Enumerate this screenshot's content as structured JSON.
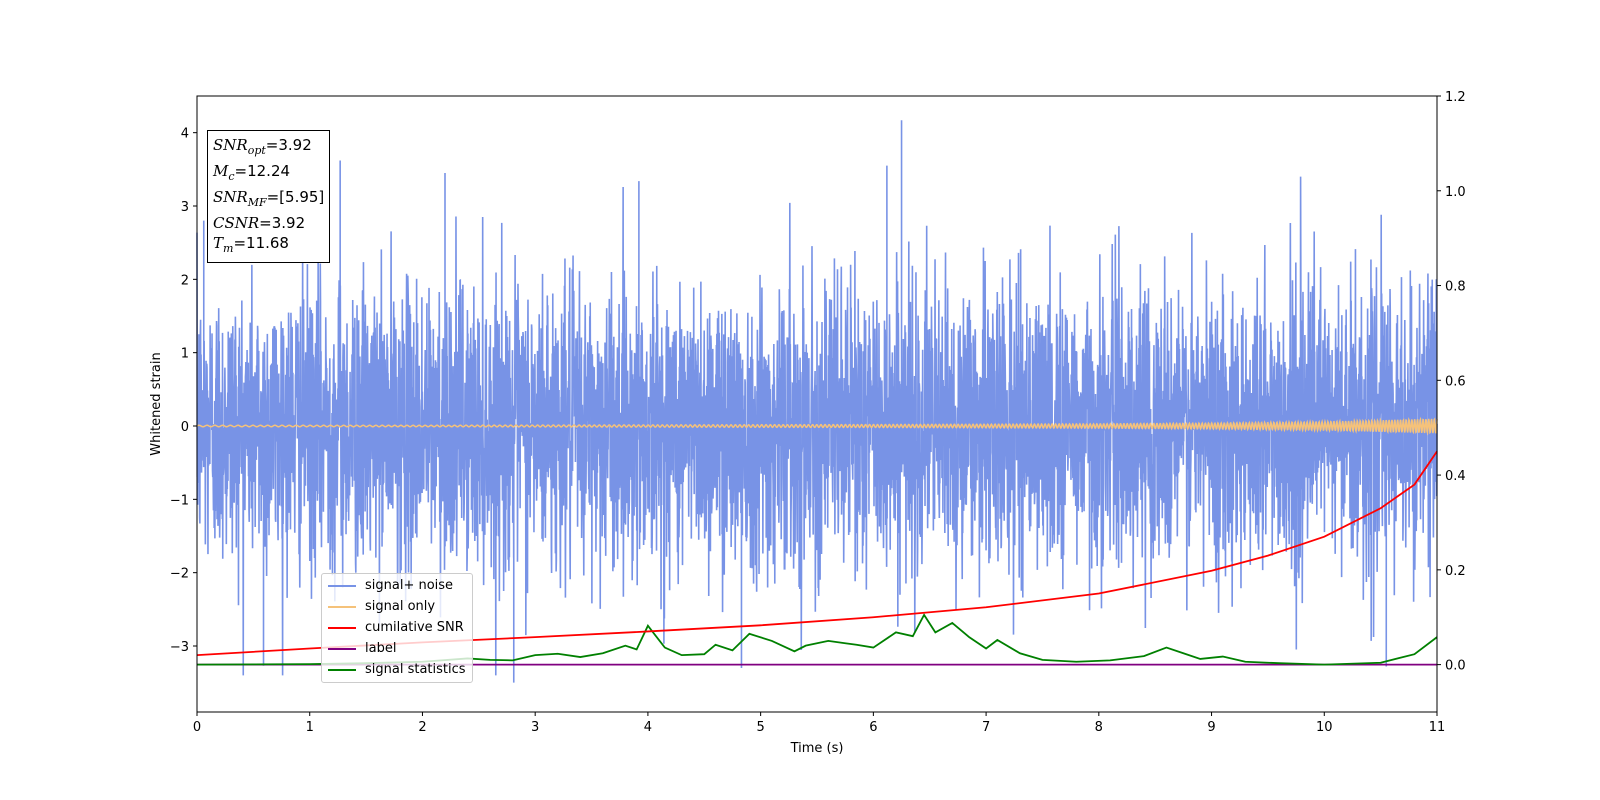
{
  "chart_data": {
    "type": "line",
    "xlabel": "Time (s)",
    "ylabel": "Whitened strain",
    "xlim": [
      0,
      11
    ],
    "ylim": [
      -3.9,
      4.5
    ],
    "y2lim": [
      -0.1,
      1.2
    ],
    "x_ticks": [
      "0",
      "1",
      "2",
      "3",
      "4",
      "5",
      "6",
      "7",
      "8",
      "9",
      "10",
      "11"
    ],
    "y_ticks": [
      "−3",
      "−2",
      "−1",
      "0",
      "1",
      "2",
      "3",
      "4"
    ],
    "y2_ticks": [
      "0.0",
      "0.2",
      "0.4",
      "0.6",
      "0.8",
      "1.0",
      "1.2"
    ],
    "grid": false,
    "legend_position": "lower-left",
    "annotation": {
      "snr_opt": "=3.92",
      "mc": "=12.24",
      "snr_mf": "=[5.95]",
      "csnr": "=3.92",
      "tm": "=11.68"
    },
    "series": [
      {
        "name": "signal+ noise",
        "color": "#7893e6",
        "axis": "left",
        "description_values": "noise band approx. between -2.5 and 2.5, peaks up to 4.17 near t=6.25",
        "noise_band": [
          -2.5,
          2.5
        ],
        "peaks": [
          [
            0.06,
            2.8
          ],
          [
            1.27,
            3.62
          ],
          [
            2.2,
            3.45
          ],
          [
            3.92,
            3.34
          ],
          [
            6.25,
            4.17
          ],
          [
            6.12,
            3.55
          ],
          [
            2.81,
            -3.5
          ],
          [
            0.59,
            -3.27
          ],
          [
            4.83,
            -3.3
          ],
          [
            10.55,
            -3.28
          ]
        ]
      },
      {
        "name": "signal only",
        "color": "#f5c27a",
        "axis": "left",
        "envelope": [
          [
            0,
            0.01
          ],
          [
            2,
            0.01
          ],
          [
            4,
            0.015
          ],
          [
            6,
            0.02
          ],
          [
            8,
            0.03
          ],
          [
            9,
            0.04
          ],
          [
            10,
            0.06
          ],
          [
            10.5,
            0.08
          ],
          [
            11,
            0.1
          ]
        ]
      },
      {
        "name": "cumilative SNR",
        "color": "#ff0000",
        "axis": "right",
        "points": [
          [
            0,
            0.02
          ],
          [
            1,
            0.034
          ],
          [
            2,
            0.047
          ],
          [
            3,
            0.058
          ],
          [
            4,
            0.07
          ],
          [
            5,
            0.083
          ],
          [
            6,
            0.1
          ],
          [
            7,
            0.121
          ],
          [
            8,
            0.15
          ],
          [
            9,
            0.198
          ],
          [
            9.5,
            0.23
          ],
          [
            10,
            0.27
          ],
          [
            10.5,
            0.33
          ],
          [
            10.8,
            0.38
          ],
          [
            11,
            0.45
          ]
        ]
      },
      {
        "name": "label",
        "color": "#800080",
        "axis": "right",
        "points": [
          [
            0,
            0.0
          ],
          [
            11,
            0.0
          ]
        ]
      },
      {
        "name": "signal statistics",
        "color": "#008000",
        "axis": "right",
        "points": [
          [
            0,
            0.0
          ],
          [
            1,
            0.001
          ],
          [
            1.5,
            0.003
          ],
          [
            2,
            0.006
          ],
          [
            2.4,
            0.013
          ],
          [
            2.6,
            0.01
          ],
          [
            2.8,
            0.009
          ],
          [
            3,
            0.02
          ],
          [
            3.2,
            0.023
          ],
          [
            3.4,
            0.016
          ],
          [
            3.6,
            0.024
          ],
          [
            3.8,
            0.04
          ],
          [
            3.9,
            0.032
          ],
          [
            4.0,
            0.082
          ],
          [
            4.15,
            0.036
          ],
          [
            4.3,
            0.02
          ],
          [
            4.5,
            0.022
          ],
          [
            4.6,
            0.042
          ],
          [
            4.75,
            0.03
          ],
          [
            4.9,
            0.065
          ],
          [
            5.1,
            0.05
          ],
          [
            5.3,
            0.028
          ],
          [
            5.4,
            0.04
          ],
          [
            5.6,
            0.05
          ],
          [
            5.75,
            0.045
          ],
          [
            5.85,
            0.042
          ],
          [
            6.0,
            0.036
          ],
          [
            6.2,
            0.068
          ],
          [
            6.35,
            0.06
          ],
          [
            6.45,
            0.105
          ],
          [
            6.55,
            0.068
          ],
          [
            6.7,
            0.088
          ],
          [
            6.85,
            0.058
          ],
          [
            7.0,
            0.034
          ],
          [
            7.1,
            0.052
          ],
          [
            7.3,
            0.024
          ],
          [
            7.5,
            0.01
          ],
          [
            7.8,
            0.006
          ],
          [
            8.1,
            0.009
          ],
          [
            8.4,
            0.018
          ],
          [
            8.6,
            0.036
          ],
          [
            8.75,
            0.024
          ],
          [
            8.9,
            0.012
          ],
          [
            9.1,
            0.017
          ],
          [
            9.3,
            0.006
          ],
          [
            9.6,
            0.003
          ],
          [
            10.0,
            0.0
          ],
          [
            10.5,
            0.004
          ],
          [
            10.8,
            0.022
          ],
          [
            11,
            0.058
          ]
        ]
      }
    ]
  }
}
